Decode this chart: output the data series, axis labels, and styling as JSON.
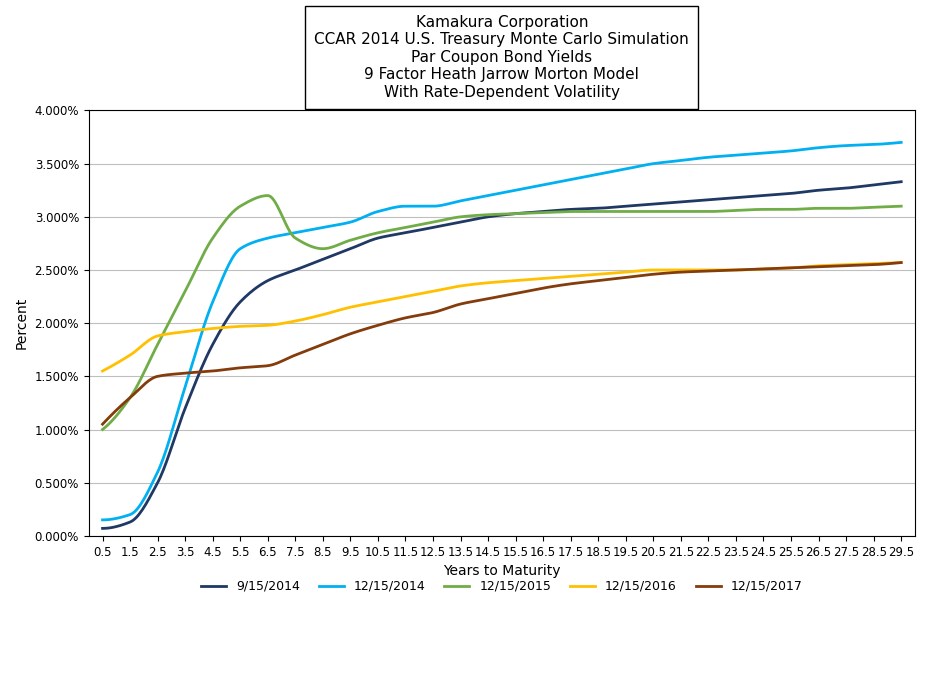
{
  "title": "Kamakura Corporation\nCCAR 2014 U.S. Treasury Monte Carlo Simulation\nPar Coupon Bond Yields\n9 Factor Heath Jarrow Morton Model\nWith Rate-Dependent Volatility",
  "xlabel": "Years to Maturity",
  "ylabel": "Percent",
  "xlim": [
    0.0,
    30.0
  ],
  "ylim": [
    0.0,
    0.04
  ],
  "x_ticks": [
    0.5,
    1.5,
    2.5,
    3.5,
    4.5,
    5.5,
    6.5,
    7.5,
    8.5,
    9.5,
    10.5,
    11.5,
    12.5,
    13.5,
    14.5,
    15.5,
    16.5,
    17.5,
    18.5,
    19.5,
    20.5,
    21.5,
    22.5,
    23.5,
    24.5,
    25.5,
    26.5,
    27.5,
    28.5,
    29.5
  ],
  "y_ticks": [
    0.0,
    0.005,
    0.01,
    0.015,
    0.02,
    0.025,
    0.03,
    0.035,
    0.04
  ],
  "series": [
    {
      "label": "9/15/2014",
      "color": "#1f3864",
      "linewidth": 2.0,
      "data_x": [
        0.5,
        1.5,
        2.5,
        3.5,
        4.5,
        5.5,
        6.5,
        7.5,
        8.5,
        9.5,
        10.5,
        11.5,
        12.5,
        13.5,
        14.5,
        15.5,
        16.5,
        17.5,
        18.5,
        19.5,
        20.5,
        21.5,
        22.5,
        23.5,
        24.5,
        25.5,
        26.5,
        27.5,
        28.5,
        29.5
      ],
      "data_y": [
        0.0007,
        0.0013,
        0.005,
        0.012,
        0.018,
        0.022,
        0.024,
        0.025,
        0.026,
        0.027,
        0.028,
        0.0285,
        0.029,
        0.0295,
        0.03,
        0.0303,
        0.0305,
        0.0307,
        0.0308,
        0.031,
        0.0312,
        0.0314,
        0.0316,
        0.0318,
        0.032,
        0.0322,
        0.0325,
        0.0327,
        0.033,
        0.0333
      ]
    },
    {
      "label": "12/15/2014",
      "color": "#00b0f0",
      "linewidth": 2.0,
      "data_x": [
        0.5,
        1.5,
        2.5,
        3.5,
        4.5,
        5.5,
        6.5,
        7.5,
        8.5,
        9.5,
        10.5,
        11.5,
        12.5,
        13.5,
        14.5,
        15.5,
        16.5,
        17.5,
        18.5,
        19.5,
        20.5,
        21.5,
        22.5,
        23.5,
        24.5,
        25.5,
        26.5,
        27.5,
        28.5,
        29.5
      ],
      "data_y": [
        0.0015,
        0.002,
        0.006,
        0.014,
        0.022,
        0.027,
        0.028,
        0.0285,
        0.029,
        0.0295,
        0.0305,
        0.031,
        0.031,
        0.0315,
        0.032,
        0.0325,
        0.033,
        0.0335,
        0.034,
        0.0345,
        0.035,
        0.0353,
        0.0356,
        0.0358,
        0.036,
        0.0362,
        0.0365,
        0.0367,
        0.0368,
        0.037
      ]
    },
    {
      "label": "12/15/2015",
      "color": "#70ad47",
      "linewidth": 2.0,
      "data_x": [
        0.5,
        1.5,
        2.5,
        3.5,
        4.5,
        5.5,
        6.5,
        7.5,
        8.5,
        9.5,
        10.5,
        11.5,
        12.5,
        13.5,
        14.5,
        15.5,
        16.5,
        17.5,
        18.5,
        19.5,
        20.5,
        21.5,
        22.5,
        23.5,
        24.5,
        25.5,
        26.5,
        27.5,
        28.5,
        29.5
      ],
      "data_y": [
        0.01,
        0.013,
        0.018,
        0.023,
        0.028,
        0.031,
        0.032,
        0.028,
        0.027,
        0.0278,
        0.0285,
        0.029,
        0.0295,
        0.03,
        0.0302,
        0.0303,
        0.0304,
        0.0305,
        0.0305,
        0.0305,
        0.0305,
        0.0305,
        0.0305,
        0.0306,
        0.0307,
        0.0307,
        0.0308,
        0.0308,
        0.0309,
        0.031
      ]
    },
    {
      "label": "12/15/2016",
      "color": "#ffc000",
      "linewidth": 2.0,
      "data_x": [
        0.5,
        1.5,
        2.5,
        3.5,
        4.5,
        5.5,
        6.5,
        7.5,
        8.5,
        9.5,
        10.5,
        11.5,
        12.5,
        13.5,
        14.5,
        15.5,
        16.5,
        17.5,
        18.5,
        19.5,
        20.5,
        21.5,
        22.5,
        23.5,
        24.5,
        25.5,
        26.5,
        27.5,
        28.5,
        29.5
      ],
      "data_y": [
        0.0155,
        0.017,
        0.0188,
        0.0192,
        0.0195,
        0.0197,
        0.0198,
        0.0202,
        0.0208,
        0.0215,
        0.022,
        0.0225,
        0.023,
        0.0235,
        0.0238,
        0.024,
        0.0242,
        0.0244,
        0.0246,
        0.0248,
        0.025,
        0.025,
        0.025,
        0.025,
        0.0251,
        0.0252,
        0.0254,
        0.0255,
        0.0256,
        0.0257
      ]
    },
    {
      "label": "12/15/2017",
      "color": "#843c0c",
      "linewidth": 2.0,
      "data_x": [
        0.5,
        1.5,
        2.5,
        3.5,
        4.5,
        5.5,
        6.5,
        7.5,
        8.5,
        9.5,
        10.5,
        11.5,
        12.5,
        13.5,
        14.5,
        15.5,
        16.5,
        17.5,
        18.5,
        19.5,
        20.5,
        21.5,
        22.5,
        23.5,
        24.5,
        25.5,
        26.5,
        27.5,
        28.5,
        29.5
      ],
      "data_y": [
        0.0105,
        0.013,
        0.015,
        0.0153,
        0.0155,
        0.0158,
        0.016,
        0.017,
        0.018,
        0.019,
        0.0198,
        0.0205,
        0.021,
        0.0218,
        0.0223,
        0.0228,
        0.0233,
        0.0237,
        0.024,
        0.0243,
        0.0246,
        0.0248,
        0.0249,
        0.025,
        0.0251,
        0.0252,
        0.0253,
        0.0254,
        0.0255,
        0.0257
      ]
    }
  ],
  "background_color": "#ffffff",
  "grid_color": "#bfbfbf",
  "title_fontsize": 11,
  "axis_label_fontsize": 10,
  "tick_fontsize": 8.5,
  "legend_fontsize": 9
}
